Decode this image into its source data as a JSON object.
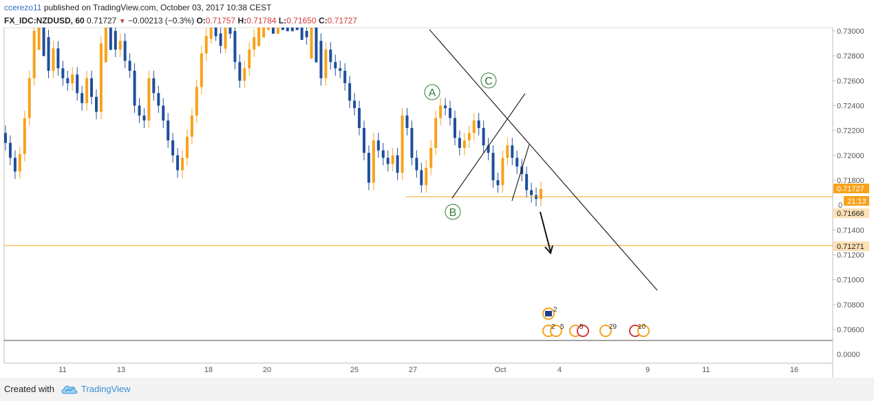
{
  "header": {
    "author": "ccerezo11",
    "published_text": "published on TradingView.com, October 03, 2017 10:38 CEST",
    "symbol": "FX_IDC:NZDUSD, 60",
    "last": "0.71727",
    "change": "−0.00213 (−0.3%)",
    "o_label": "O:",
    "o_value": "0.71757",
    "h_label": "H:",
    "h_value": "0.71784",
    "l_label": "L:",
    "l_value": "0.71650",
    "c_label": "C:",
    "c_value": "0.71727"
  },
  "footer": {
    "created_with": "Created with",
    "brand": "TradingView"
  },
  "colors": {
    "up_candle": "#f7a21b",
    "down_candle": "#1f4e9c",
    "price_line": "#f7a21b",
    "drawing": "#222222",
    "wave_label": "#2e7d32"
  },
  "chart_data": {
    "type": "candlestick",
    "symbol": "FX_IDC:NZDUSD",
    "interval": "60",
    "y_axis": {
      "range": [
        0.705,
        0.731
      ],
      "ticks": [
        "0.73000",
        "0.72800",
        "0.72600",
        "0.72400",
        "0.72200",
        "0.72000",
        "0.71800",
        "0.71400",
        "0.71200",
        "0.71000",
        "0.70800",
        "0.70600"
      ],
      "partial_tick": "0",
      "indicator_tick": "0.0000"
    },
    "x_axis": {
      "ticks": [
        "11",
        "13",
        "18",
        "20",
        "25",
        "27",
        "Oct",
        "4",
        "9",
        "11",
        "16"
      ]
    },
    "price_labels": {
      "last": "0.71727",
      "countdown": "21:13",
      "low_mark": "0.71666",
      "target": "0.71271"
    },
    "horizontal_levels": [
      {
        "name": "support",
        "value": 0.7167
      },
      {
        "name": "target",
        "value": 0.71271
      }
    ],
    "wave_labels": [
      "A",
      "B",
      "C"
    ],
    "trendlines": [
      {
        "name": "descending-resistance",
        "from": [
          "Sep 26",
          0.731
        ],
        "to": [
          "Oct 9",
          0.7092
        ]
      },
      {
        "name": "ab-channel",
        "from": [
          "Sep 28",
          0.7167
        ],
        "to": [
          "Oct 1",
          0.7248
        ]
      },
      {
        "name": "c-leg-channel",
        "from": [
          "Oct 2",
          0.7167
        ],
        "to": [
          "Oct 3",
          0.7211
        ]
      },
      {
        "name": "projection-arrow",
        "from": [
          "Oct 3",
          0.7157
        ],
        "to": [
          "Oct 3",
          0.7124
        ]
      }
    ],
    "events": [
      {
        "label": "2",
        "flag": "NZ"
      },
      {
        "label": "2"
      },
      {
        "label": "5"
      },
      {
        "label": "5"
      },
      {
        "label": "29"
      },
      {
        "label": "10"
      }
    ],
    "candles_close_path": [
      0.721,
      0.7198,
      0.7187,
      0.7201,
      0.723,
      0.7262,
      0.73,
      0.7318,
      0.7295,
      0.7268,
      0.7286,
      0.727,
      0.7262,
      0.7258,
      0.7265,
      0.725,
      0.7242,
      0.7262,
      0.7247,
      0.7235,
      0.729,
      0.7318,
      0.73,
      0.7285,
      0.7292,
      0.7276,
      0.7268,
      0.724,
      0.7232,
      0.7228,
      0.7262,
      0.725,
      0.724,
      0.7228,
      0.7212,
      0.72,
      0.7188,
      0.7198,
      0.7215,
      0.7232,
      0.7255,
      0.7282,
      0.7296,
      0.7305,
      0.7298,
      0.7288,
      0.7305,
      0.73,
      0.7275,
      0.726,
      0.727,
      0.7285,
      0.7295,
      0.731,
      0.7318,
      0.732,
      0.7315,
      0.732,
      0.7318,
      0.7315,
      0.7312,
      0.731,
      0.73,
      0.7295,
      0.732,
      0.7292,
      0.7262,
      0.7285,
      0.7275,
      0.727,
      0.7268,
      0.7258,
      0.7244,
      0.7238,
      0.7222,
      0.7202,
      0.7178,
      0.7212,
      0.7204,
      0.7198,
      0.7193,
      0.72,
      0.7186,
      0.7232,
      0.7222,
      0.7198,
      0.7188,
      0.7176,
      0.719,
      0.7206,
      0.723,
      0.724,
      0.7238,
      0.723,
      0.7214,
      0.7206,
      0.7212,
      0.7218,
      0.7228,
      0.7222,
      0.7208,
      0.7202,
      0.718,
      0.7176,
      0.7198,
      0.7208,
      0.7198,
      0.7191,
      0.7185,
      0.7172,
      0.7168,
      0.7165,
      0.7173
    ]
  }
}
